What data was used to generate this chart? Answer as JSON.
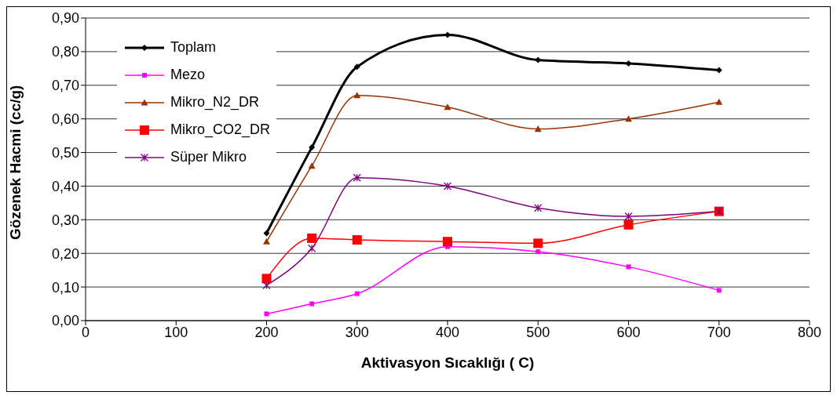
{
  "chart_data": {
    "type": "line",
    "xlabel": "Aktivasyon Sıcaklığı ( C)",
    "ylabel": "Gözenek Hacmi (cc/g)",
    "x": [
      200,
      250,
      300,
      400,
      500,
      600,
      700
    ],
    "series": [
      {
        "name": "Toplam",
        "color": "#000000",
        "marker": "diamond",
        "values": [
          0.26,
          0.515,
          0.755,
          0.85,
          0.775,
          0.765,
          0.745
        ]
      },
      {
        "name": "Mezo",
        "color": "#ff00ff",
        "marker": "square",
        "values": [
          0.02,
          0.05,
          0.08,
          0.22,
          0.205,
          0.16,
          0.09
        ]
      },
      {
        "name": "Mikro_N2_DR",
        "color": "#993300",
        "marker": "triangle",
        "values": [
          0.235,
          0.46,
          0.67,
          0.635,
          0.57,
          0.6,
          0.65
        ]
      },
      {
        "name": "Mikro_CO2_DR",
        "color": "#ff0000",
        "marker": "square",
        "values": [
          0.125,
          0.245,
          0.24,
          0.235,
          0.23,
          0.285,
          0.325
        ]
      },
      {
        "name": "Süper Mikro",
        "color": "#800080",
        "marker": "cross",
        "values": [
          0.105,
          0.215,
          0.425,
          0.4,
          0.335,
          0.31,
          0.325
        ]
      }
    ],
    "xlim": [
      0,
      800
    ],
    "xticks": [
      0,
      100,
      200,
      300,
      400,
      500,
      600,
      700,
      800
    ],
    "ylim": [
      0,
      0.9
    ],
    "yticks": [
      {
        "value": 0,
        "label": "0,00"
      },
      {
        "value": 0.1,
        "label": "0,10"
      },
      {
        "value": 0.2,
        "label": "0,20"
      },
      {
        "value": 0.3,
        "label": "0,30"
      },
      {
        "value": 0.4,
        "label": "0,40"
      },
      {
        "value": 0.5,
        "label": "0,50"
      },
      {
        "value": 0.6,
        "label": "0,60"
      },
      {
        "value": 0.7,
        "label": "0,70"
      },
      {
        "value": 0.8,
        "label": "0,80"
      },
      {
        "value": 0.9,
        "label": "0,90"
      }
    ],
    "grid": "y",
    "legend": "top left",
    "line_style": "solid"
  }
}
